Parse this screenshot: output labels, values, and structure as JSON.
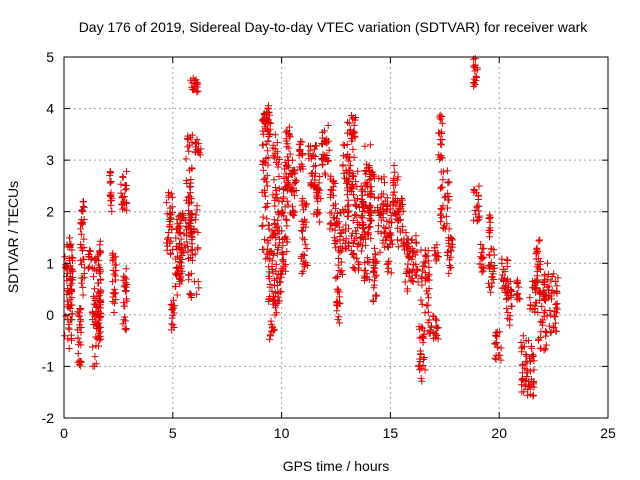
{
  "chart_data": {
    "type": "scatter",
    "title": "Day 176 of 2019, Sidereal Day-to-day VTEC variation (SDTVAR) for receiver wark",
    "xlabel": "GPS time / hours",
    "ylabel": "SDTVAR / TECUs",
    "xlim": [
      0,
      25
    ],
    "ylim": [
      -2,
      5
    ],
    "xticks": [
      "0",
      "5",
      "10",
      "15",
      "20",
      "25"
    ],
    "yticks": [
      "-2",
      "-1",
      "0",
      "1",
      "2",
      "3",
      "4",
      "5"
    ],
    "grid": true,
    "marker": "+",
    "color": "#e00000",
    "series": [
      {
        "name": "SDTVAR",
        "segments": [
          [
            0.0,
            0.4,
            -0.7,
            1.5
          ],
          [
            0.25,
            0.4,
            -0.1,
            1.5
          ],
          [
            0.6,
            0.8,
            -1.1,
            0.2
          ],
          [
            0.75,
            0.95,
            0.3,
            2.2
          ],
          [
            1.1,
            1.3,
            0.9,
            1.3
          ],
          [
            1.3,
            1.6,
            -1.0,
            0.2
          ],
          [
            1.35,
            1.7,
            -0.3,
            1.2
          ],
          [
            1.6,
            1.7,
            -0.5,
            1.6
          ],
          [
            2.1,
            2.2,
            2.0,
            2.8
          ],
          [
            2.2,
            2.4,
            0.0,
            1.2
          ],
          [
            2.6,
            2.9,
            2.0,
            2.9
          ],
          [
            2.7,
            2.9,
            -0.3,
            0.9
          ],
          [
            4.7,
            5.0,
            1.0,
            2.4
          ],
          [
            4.9,
            5.1,
            -0.3,
            0.3
          ],
          [
            5.1,
            5.4,
            0.3,
            2.0
          ],
          [
            5.3,
            5.5,
            0.7,
            2.0
          ],
          [
            5.5,
            5.9,
            1.2,
            3.5
          ],
          [
            5.7,
            6.2,
            0.3,
            2.2
          ],
          [
            5.8,
            6.2,
            4.3,
            4.6
          ],
          [
            6.0,
            6.3,
            3.1,
            3.4
          ],
          [
            9.1,
            9.4,
            1.0,
            4.1
          ],
          [
            9.2,
            9.5,
            3.3,
            4.0
          ],
          [
            9.4,
            9.7,
            -0.5,
            2.0
          ],
          [
            9.6,
            9.9,
            1.5,
            3.5
          ],
          [
            9.7,
            10.0,
            0.0,
            1.5
          ],
          [
            10.0,
            10.3,
            0.8,
            3.0
          ],
          [
            10.2,
            10.4,
            2.5,
            3.7
          ],
          [
            10.4,
            10.7,
            1.8,
            3.0
          ],
          [
            10.8,
            11.0,
            2.8,
            3.4
          ],
          [
            10.9,
            11.2,
            0.8,
            2.3
          ],
          [
            11.2,
            11.6,
            2.4,
            3.3
          ],
          [
            11.4,
            11.8,
            1.8,
            2.7
          ],
          [
            11.8,
            12.2,
            2.7,
            3.7
          ],
          [
            12.2,
            12.5,
            1.6,
            2.7
          ],
          [
            12.4,
            12.8,
            0.7,
            2.0
          ],
          [
            12.5,
            12.7,
            -0.2,
            0.5
          ],
          [
            12.8,
            13.1,
            1.2,
            3.3
          ],
          [
            13.0,
            13.4,
            2.3,
            3.9
          ],
          [
            13.2,
            13.6,
            0.8,
            2.8
          ],
          [
            13.6,
            13.8,
            1.2,
            2.5
          ],
          [
            13.8,
            14.1,
            0.5,
            3.3
          ],
          [
            14.0,
            14.3,
            1.7,
            2.8
          ],
          [
            14.2,
            14.4,
            0.2,
            1.3
          ],
          [
            14.4,
            14.8,
            1.2,
            2.7
          ],
          [
            14.8,
            15.1,
            0.8,
            2.3
          ],
          [
            15.1,
            15.4,
            1.8,
            2.9
          ],
          [
            15.3,
            15.6,
            1.3,
            2.3
          ],
          [
            15.6,
            15.9,
            0.4,
            1.6
          ],
          [
            15.9,
            16.3,
            0.6,
            1.6
          ],
          [
            16.3,
            16.6,
            -1.3,
            -0.2
          ],
          [
            16.4,
            16.8,
            0.0,
            1.3
          ],
          [
            16.7,
            17.2,
            -0.5,
            0.0
          ],
          [
            17.0,
            17.2,
            1.0,
            1.4
          ],
          [
            17.2,
            17.4,
            3.0,
            3.9
          ],
          [
            17.3,
            17.7,
            1.6,
            2.8
          ],
          [
            17.6,
            17.9,
            0.8,
            1.5
          ],
          [
            18.8,
            19.0,
            4.4,
            5.0
          ],
          [
            18.8,
            19.1,
            1.8,
            2.5
          ],
          [
            19.1,
            19.3,
            0.8,
            1.4
          ],
          [
            19.5,
            19.6,
            1.5,
            2.0
          ],
          [
            19.5,
            19.8,
            0.3,
            1.3
          ],
          [
            19.8,
            20.1,
            -0.9,
            -0.3
          ],
          [
            20.1,
            20.4,
            0.4,
            1.1
          ],
          [
            20.3,
            20.6,
            -0.2,
            0.8
          ],
          [
            20.8,
            21.0,
            0.2,
            0.7
          ],
          [
            21.0,
            21.4,
            -1.5,
            -0.4
          ],
          [
            21.3,
            21.6,
            -1.6,
            -0.6
          ],
          [
            21.4,
            21.8,
            0.0,
            0.8
          ],
          [
            21.7,
            21.9,
            0.6,
            1.5
          ],
          [
            21.8,
            22.2,
            -0.7,
            0.5
          ],
          [
            22.0,
            22.3,
            0.3,
            1.0
          ],
          [
            22.3,
            22.7,
            -0.5,
            0.8
          ]
        ]
      }
    ]
  }
}
